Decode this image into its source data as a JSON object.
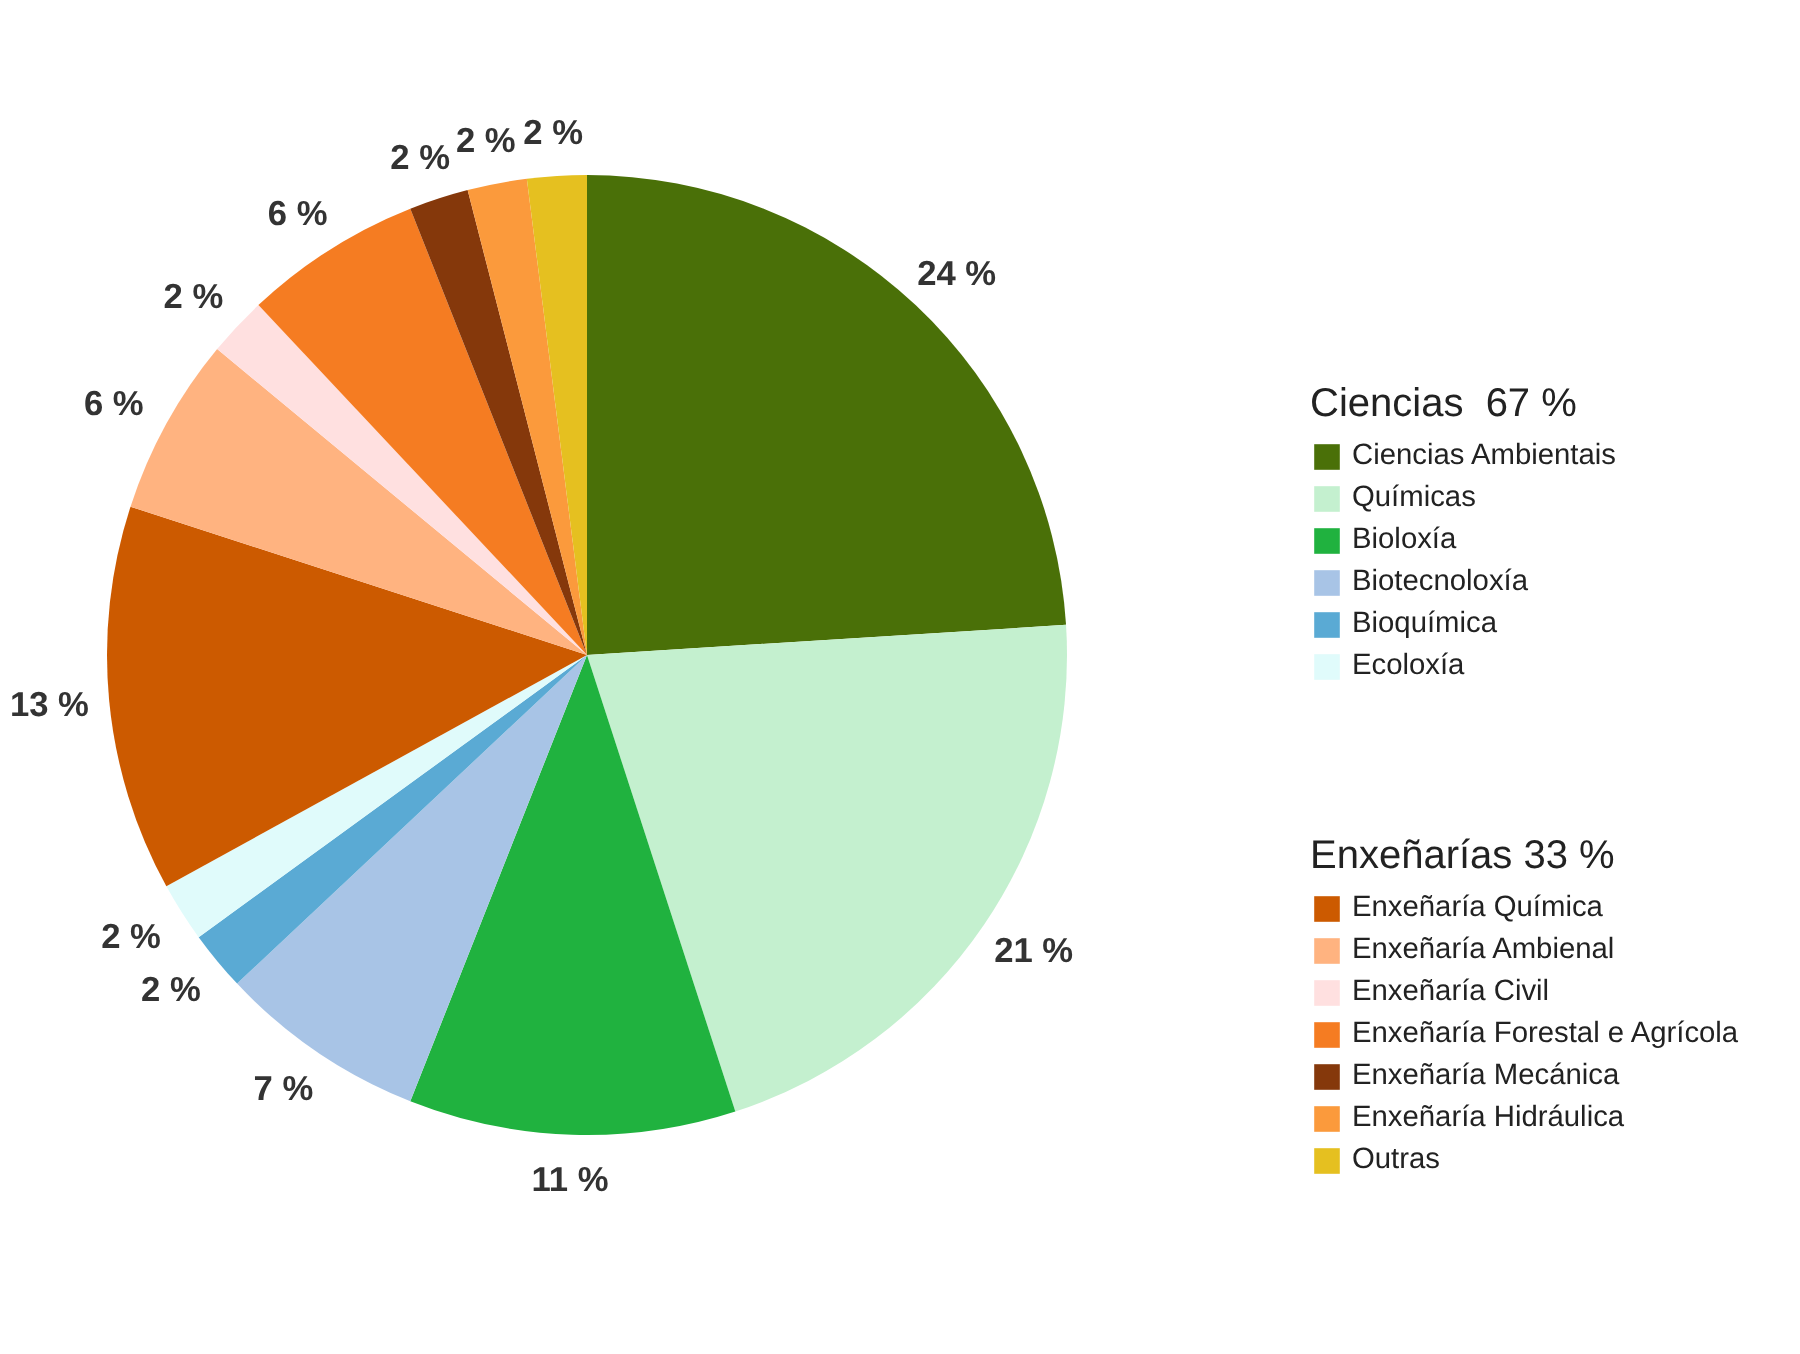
{
  "chart_data": {
    "type": "pie",
    "categories": [
      "Ciencias Ambientais",
      "Químicas",
      "Bioloxía",
      "Biotecnoloxía",
      "Bioquímica",
      "Ecoloxía",
      "Enxeñaría Química",
      "Enxeñaría Ambienal",
      "Enxeñaría Civil",
      "Enxeñaría Forestal e Agrícola",
      "Enxeñaría Mecánica",
      "Enxeñaría Hidráulica",
      "Outras"
    ],
    "values": [
      24,
      21,
      11,
      7,
      2,
      2,
      13,
      6,
      2,
      6,
      2,
      2,
      2
    ],
    "value_labels": [
      "24 %",
      "21 %",
      "11 %",
      "7 %",
      "2 %",
      "2 %",
      "13 %",
      "6 %",
      "2 %",
      "6 %",
      "2 %",
      "2 %",
      "2 %"
    ],
    "colors": [
      "#4a7008",
      "#c4f0cf",
      "#20b23f",
      "#a8c4e6",
      "#5aaad4",
      "#e0fbfb",
      "#cc5a00",
      "#ffb380",
      "#ffe0e0",
      "#f57c22",
      "#85380b",
      "#fb9a3c",
      "#e5c020"
    ],
    "annotations": [
      "Ciencias  67 %",
      "Enxeñarías 33 %"
    ],
    "legend": "right"
  }
}
